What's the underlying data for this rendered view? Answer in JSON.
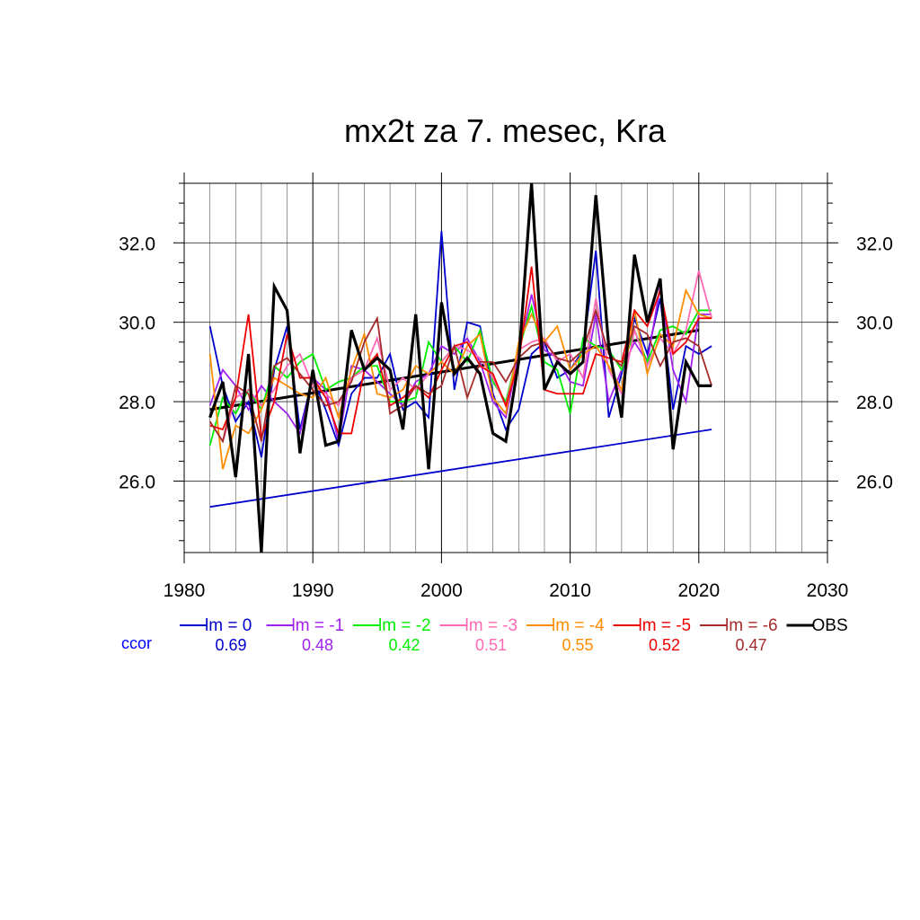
{
  "chart_data": {
    "type": "line",
    "title": "mx2t za 7. mesec, Kra",
    "xlabel": "",
    "ylabel": "",
    "xlim": [
      1980,
      2030
    ],
    "ylim": [
      24.2,
      33.5
    ],
    "x_ticks": [
      1980,
      1990,
      2000,
      2010,
      2020,
      2030
    ],
    "x_tick_labels": [
      "1980",
      "1990",
      "2000",
      "2010",
      "2020",
      "2030"
    ],
    "y_ticks": [
      26.0,
      28.0,
      30.0,
      32.0
    ],
    "y_tick_labels": [
      "26.0",
      "28.0",
      "30.0",
      "32.0"
    ],
    "grid": true,
    "legend_position": "bottom",
    "ccor_label": "ccor",
    "x": [
      1982,
      1983,
      1984,
      1985,
      1986,
      1987,
      1988,
      1989,
      1990,
      1991,
      1992,
      1993,
      1994,
      1995,
      1996,
      1997,
      1998,
      1999,
      2000,
      2001,
      2002,
      2003,
      2004,
      2005,
      2006,
      2007,
      2008,
      2009,
      2010,
      2011,
      2012,
      2013,
      2014,
      2015,
      2016,
      2017,
      2018,
      2019,
      2020,
      2021
    ],
    "series": [
      {
        "name": "lm = 0",
        "color": "#0000cc",
        "ccor": "0.69",
        "values": [
          29.9,
          28.4,
          27.5,
          28.0,
          26.6,
          28.8,
          29.9,
          27.3,
          28.6,
          27.8,
          26.9,
          28.2,
          28.6,
          28.6,
          29.2,
          27.8,
          28.0,
          27.6,
          32.3,
          28.3,
          30.0,
          29.9,
          28.2,
          27.3,
          27.8,
          29.2,
          29.5,
          28.6,
          28.8,
          29.3,
          31.8,
          27.6,
          28.7,
          30.1,
          29.2,
          30.6,
          27.8,
          29.4,
          29.2,
          29.4
        ]
      },
      {
        "name": "lm = -1",
        "color": "#a020f0",
        "ccor": "0.48",
        "values": [
          27.9,
          28.8,
          28.4,
          27.8,
          28.4,
          28.0,
          27.7,
          27.2,
          28.6,
          28.3,
          27.0,
          28.9,
          28.8,
          28.5,
          28.2,
          27.9,
          28.5,
          28.7,
          29.4,
          29.2,
          29.6,
          29.0,
          28.0,
          27.6,
          29.2,
          30.7,
          29.3,
          29.1,
          28.5,
          28.4,
          30.2,
          28.0,
          28.8,
          29.5,
          29.0,
          30.9,
          28.8,
          28.0,
          30.2,
          30.2
        ]
      },
      {
        "name": "lm = -2",
        "color": "#00ee00",
        "ccor": "0.42",
        "values": [
          26.9,
          28.1,
          27.7,
          28.3,
          27.8,
          28.9,
          28.6,
          29.0,
          29.2,
          28.3,
          28.5,
          28.6,
          28.9,
          28.9,
          28.0,
          28.0,
          28.1,
          29.5,
          29.0,
          29.4,
          29.0,
          29.8,
          28.5,
          28.0,
          29.3,
          30.4,
          29.0,
          28.8,
          27.7,
          29.6,
          29.4,
          29.3,
          28.8,
          29.8,
          29.0,
          29.8,
          29.9,
          29.7,
          30.3,
          30.3
        ]
      },
      {
        "name": "lm = -3",
        "color": "#ff69b4",
        "ccor": "0.51",
        "values": [
          27.5,
          27.0,
          28.1,
          28.3,
          27.9,
          28.3,
          28.9,
          29.2,
          28.4,
          28.2,
          27.9,
          28.6,
          28.8,
          29.6,
          28.3,
          28.6,
          28.3,
          28.7,
          29.0,
          29.4,
          29.3,
          29.1,
          28.6,
          27.9,
          29.3,
          29.5,
          29.6,
          29.0,
          29.2,
          28.6,
          30.6,
          28.8,
          28.2,
          29.8,
          28.9,
          29.6,
          29.2,
          29.8,
          31.3,
          30.1
        ]
      },
      {
        "name": "lm = -4",
        "color": "#ff8c00",
        "ccor": "0.55",
        "values": [
          29.2,
          26.3,
          27.4,
          27.2,
          27.8,
          28.6,
          28.4,
          28.2,
          28.1,
          28.6,
          27.6,
          28.8,
          29.7,
          28.2,
          28.1,
          28.3,
          28.9,
          28.7,
          29.0,
          28.7,
          29.4,
          29.7,
          28.1,
          27.7,
          29.5,
          30.2,
          29.5,
          29.9,
          28.8,
          29.2,
          29.4,
          28.9,
          28.3,
          30.3,
          28.7,
          29.7,
          29.4,
          30.8,
          30.2,
          30.1
        ]
      },
      {
        "name": "lm = -5",
        "color": "#ee0000",
        "ccor": "0.52",
        "values": [
          27.4,
          27.3,
          28.1,
          30.2,
          27.1,
          28.0,
          29.7,
          28.6,
          28.6,
          28.1,
          27.2,
          27.2,
          28.8,
          29.2,
          27.9,
          28.1,
          28.4,
          28.1,
          28.8,
          29.4,
          29.5,
          28.9,
          28.7,
          27.9,
          29.0,
          31.4,
          28.3,
          28.2,
          28.2,
          28.2,
          29.2,
          29.1,
          29.0,
          30.3,
          29.9,
          30.8,
          29.2,
          29.5,
          30.1,
          30.1
        ]
      },
      {
        "name": "lm = -6",
        "color": "#a52a2a",
        "ccor": "0.47",
        "values": [
          27.5,
          27.0,
          28.4,
          28.2,
          27.0,
          28.9,
          29.1,
          28.7,
          28.3,
          27.9,
          28.0,
          28.5,
          29.5,
          30.1,
          27.7,
          27.9,
          28.4,
          28.2,
          28.4,
          29.4,
          28.1,
          29.0,
          29.0,
          28.5,
          29.1,
          29.4,
          29.5,
          29.1,
          29.0,
          29.3,
          30.3,
          29.2,
          28.9,
          29.9,
          29.7,
          28.9,
          29.5,
          29.6,
          29.4,
          28.4
        ]
      },
      {
        "name": "OBS",
        "color": "#000000",
        "ccor": "",
        "values": [
          27.6,
          28.5,
          26.1,
          29.2,
          24.2,
          30.9,
          30.3,
          26.7,
          28.8,
          26.9,
          27.0,
          29.8,
          28.8,
          29.1,
          28.8,
          27.3,
          30.2,
          26.3,
          30.5,
          28.7,
          29.1,
          28.7,
          27.2,
          27.0,
          29.0,
          33.5,
          28.3,
          29.0,
          28.7,
          29.0,
          33.2,
          29.4,
          27.6,
          31.7,
          30.0,
          31.1,
          26.8,
          29.0,
          28.4,
          28.4
        ]
      }
    ],
    "trend_lines": [
      {
        "color": "#000000",
        "from": [
          1982,
          27.8
        ],
        "to": [
          2020,
          29.8
        ]
      },
      {
        "color": "#0000cc",
        "from": [
          1982,
          25.35
        ],
        "to": [
          2021,
          27.3
        ]
      }
    ]
  }
}
